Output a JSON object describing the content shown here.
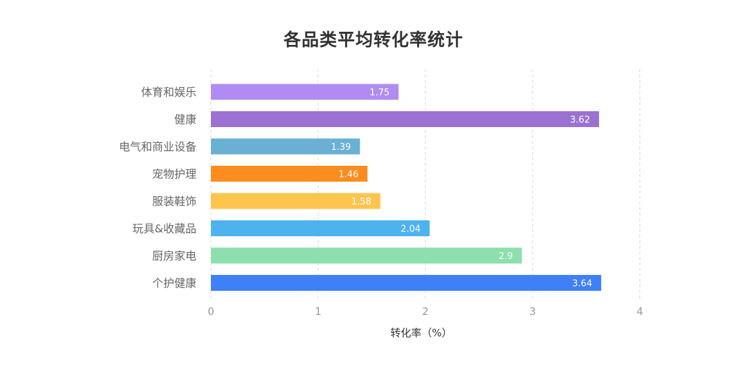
{
  "chart_data": {
    "type": "bar",
    "orientation": "horizontal",
    "title": "各品类平均转化率统计",
    "xlabel": "转化率（%）",
    "ylabel": "",
    "categories": [
      "体育和娱乐",
      "健康",
      "电气和商业设备",
      "宠物护理",
      "服装鞋饰",
      "玩具&收藏品",
      "厨房家电",
      "个护健康"
    ],
    "values": [
      1.75,
      3.62,
      1.39,
      1.46,
      1.58,
      2.04,
      2.9,
      3.64
    ],
    "value_labels": [
      "1.75",
      "3.62",
      "1.39",
      "1.46",
      "1.58",
      "2.04",
      "2.9",
      "3.64"
    ],
    "colors": [
      "#b08cf2",
      "#9b72d4",
      "#6ab0d5",
      "#fb8c1e",
      "#fdc54e",
      "#4db3ef",
      "#8ddfad",
      "#3f7ff7"
    ],
    "xlim": [
      0,
      4
    ],
    "xticks": [
      "0",
      "1",
      "2",
      "3",
      "4"
    ],
    "grid": "vertical-dashed",
    "legend": "none"
  }
}
